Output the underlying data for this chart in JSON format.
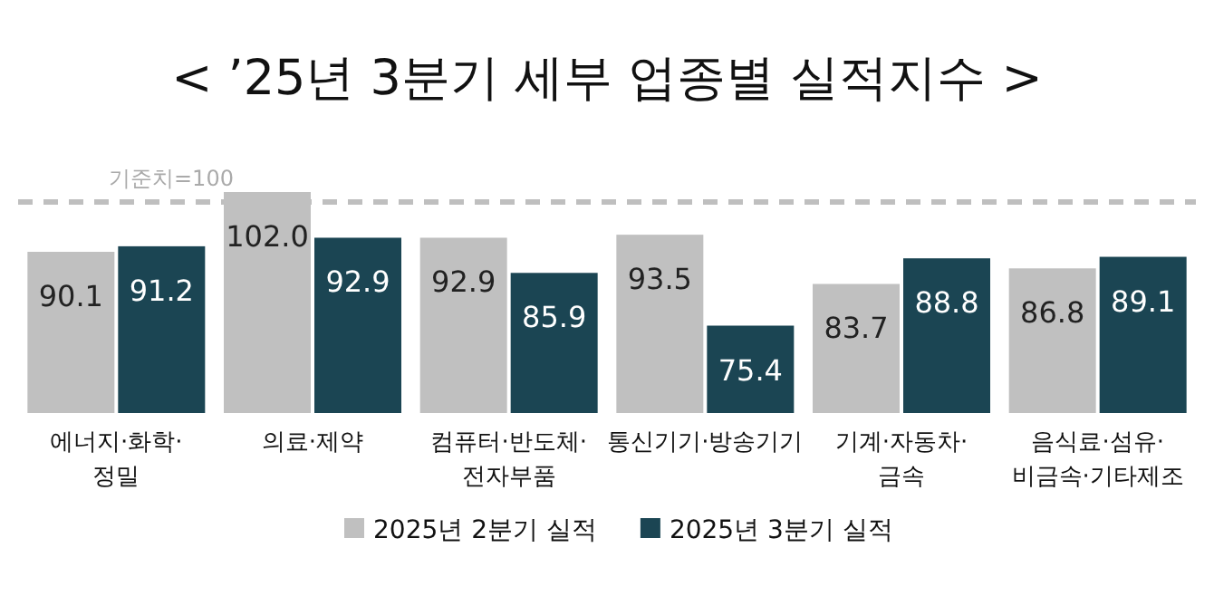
{
  "chart_data": {
    "type": "bar",
    "title": "< ’25년 3분기 세부 업종별 실적지수 >",
    "categories": [
      "에너지·화학·\n정밀",
      "의료·제약",
      "컴퓨터·반도체·\n전자부품",
      "통신기기·방송기기",
      "기계·자동차·\n금속",
      "음식료·섬유·\n비금속·기타제조"
    ],
    "series": [
      {
        "name": "2025년 2분기 실적",
        "color": "#c0c0c0",
        "values": [
          90.1,
          102.0,
          92.9,
          93.5,
          83.7,
          86.8
        ],
        "value_labels": [
          "90.1",
          "102.0",
          "92.9",
          "93.5",
          "83.7",
          "86.8"
        ]
      },
      {
        "name": "2025년 3분기 실적",
        "color": "#1b4553",
        "values": [
          91.2,
          92.9,
          85.9,
          75.4,
          88.8,
          89.1
        ],
        "value_labels": [
          "91.2",
          "92.9",
          "85.9",
          "75.4",
          "88.8",
          "89.1"
        ]
      }
    ],
    "ylim": [
      58,
      102
    ],
    "ref_lines": [
      {
        "axis": "y",
        "value": 100,
        "label": "기준치=100",
        "color": "#bfbfbf",
        "line_style": "dashed"
      }
    ],
    "legend": "bottom"
  }
}
